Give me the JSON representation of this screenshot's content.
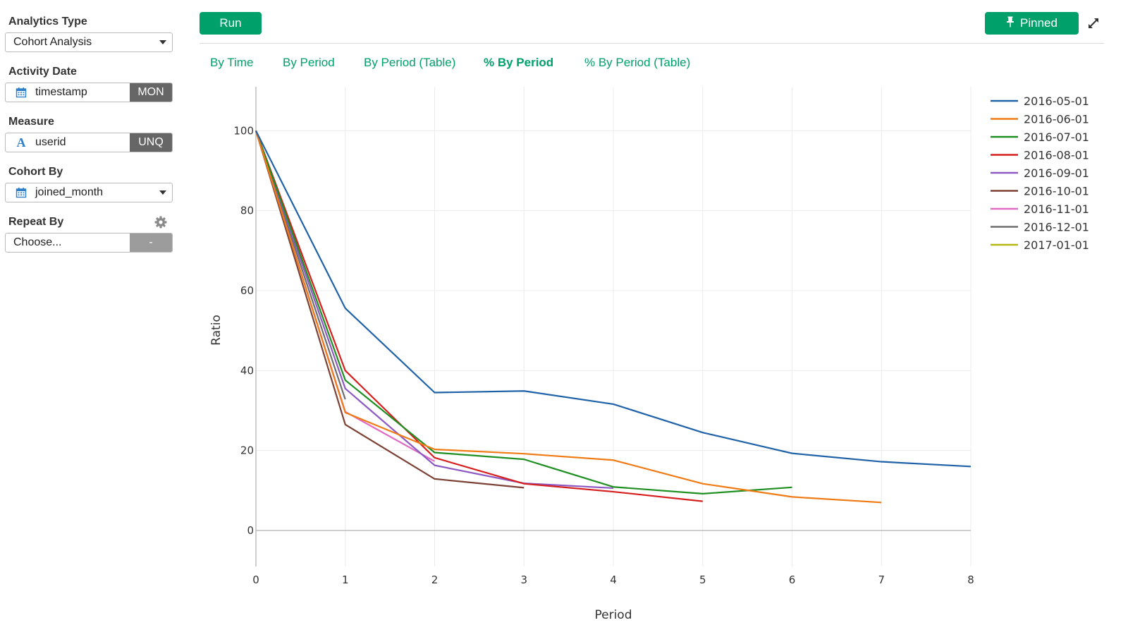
{
  "sidebar": {
    "analytics_type": {
      "label": "Analytics Type",
      "value": "Cohort Analysis"
    },
    "activity_date": {
      "label": "Activity Date",
      "value": "timestamp",
      "unit": "MON"
    },
    "measure": {
      "label": "Measure",
      "value": "userid",
      "agg": "UNQ"
    },
    "cohort_by": {
      "label": "Cohort By",
      "value": "joined_month"
    },
    "repeat_by": {
      "label": "Repeat By",
      "placeholder": "Choose...",
      "button": "-"
    }
  },
  "toolbar": {
    "run_label": "Run",
    "pinned_label": "Pinned"
  },
  "tabs": [
    {
      "label": "By Time",
      "active": false
    },
    {
      "label": "By Period",
      "active": false
    },
    {
      "label": "By Period (Table)",
      "active": false
    },
    {
      "label": "% By Period",
      "active": true
    },
    {
      "label": "% By Period (Table)",
      "active": false
    }
  ],
  "colors": {
    "accent": "#00a06b",
    "dark_suffix": "#666666",
    "icon_blue": "#2d7fc9"
  },
  "icons": [
    "calendar-icon",
    "letter-a-icon",
    "gear-icon",
    "pin-icon",
    "expand-icon",
    "chevron-down-icon"
  ],
  "chart_data": {
    "type": "line",
    "title": "",
    "xlabel": "Period",
    "ylabel": "Ratio",
    "xlim": [
      0,
      8
    ],
    "ylim": [
      -9,
      111
    ],
    "x_ticks": [
      0,
      1,
      2,
      3,
      4,
      5,
      6,
      7,
      8
    ],
    "y_ticks": [
      0,
      20,
      40,
      60,
      80,
      100
    ],
    "grid": true,
    "legend_position": "right",
    "series": [
      {
        "name": "2016-05-01",
        "color": "#1f62a8",
        "x": [
          0,
          1,
          2,
          3,
          4,
          5,
          6,
          7,
          8
        ],
        "y": [
          100,
          55.6,
          34.5,
          34.9,
          31.6,
          24.5,
          19.3,
          17.2,
          16.0
        ]
      },
      {
        "name": "2016-06-01",
        "color": "#f07b14",
        "x": [
          0,
          1,
          2,
          3,
          4,
          5,
          6,
          7
        ],
        "y": [
          100,
          29.5,
          20.3,
          19.2,
          17.6,
          11.7,
          8.4,
          7.0
        ]
      },
      {
        "name": "2016-07-01",
        "color": "#1f8f22",
        "x": [
          0,
          1,
          2,
          3,
          4,
          5,
          6
        ],
        "y": [
          100,
          37.6,
          19.5,
          17.8,
          10.9,
          9.2,
          10.8
        ]
      },
      {
        "name": "2016-08-01",
        "color": "#d61f1f",
        "x": [
          0,
          1,
          2,
          3,
          4,
          5
        ],
        "y": [
          100,
          40.0,
          18.2,
          11.7,
          9.7,
          7.3
        ]
      },
      {
        "name": "2016-09-01",
        "color": "#8c5ac2",
        "x": [
          0,
          1,
          2,
          3,
          4
        ],
        "y": [
          100,
          35.5,
          16.3,
          11.8,
          10.6
        ]
      },
      {
        "name": "2016-10-01",
        "color": "#7d4236",
        "x": [
          0,
          1,
          2,
          3
        ],
        "y": [
          100,
          26.5,
          12.9,
          10.7
        ]
      },
      {
        "name": "2016-11-01",
        "color": "#e06cc4",
        "x": [
          0,
          1,
          2
        ],
        "y": [
          100,
          29.7,
          17.3
        ]
      },
      {
        "name": "2016-12-01",
        "color": "#6e6e6e",
        "x": [
          0,
          1
        ],
        "y": [
          100,
          32.8
        ]
      },
      {
        "name": "2017-01-01",
        "color": "#b8b812",
        "x": [
          0
        ],
        "y": [
          100
        ]
      }
    ]
  }
}
